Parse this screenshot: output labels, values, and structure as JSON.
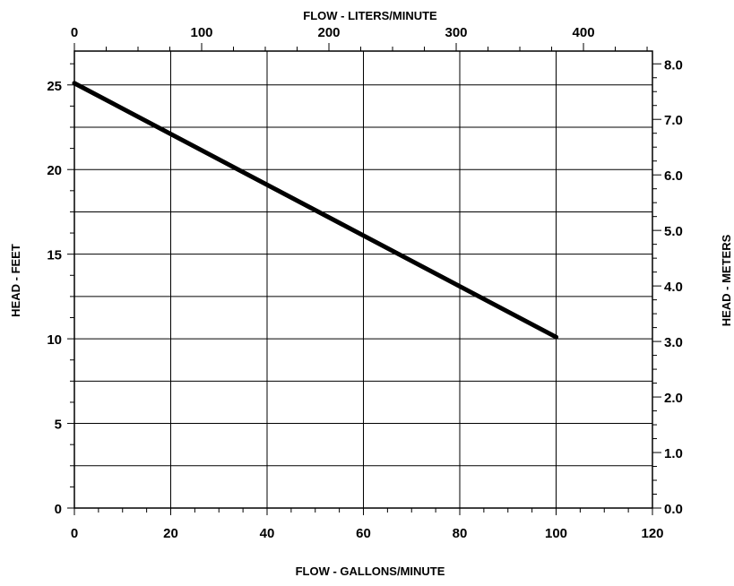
{
  "chart_data": {
    "type": "line",
    "xlabel": "FLOW - GALLONS/MINUTE",
    "ylabel": "HEAD - FEET",
    "x2label": "FLOW - LITERS/MINUTE",
    "y2label": "HEAD - METERS",
    "xlim": [
      0,
      120
    ],
    "ylim": [
      0,
      27
    ],
    "x2lim": [
      0,
      454.2
    ],
    "y2lim": [
      0,
      8.23
    ],
    "x_ticks": [
      "0",
      "20",
      "40",
      "60",
      "80",
      "100",
      "120"
    ],
    "y_ticks": [
      "0",
      "5",
      "10",
      "15",
      "20",
      "25"
    ],
    "x2_ticks": [
      "0",
      "100",
      "200",
      "300",
      "400"
    ],
    "y2_ticks": [
      "0.0",
      "1.0",
      "2.0",
      "3.0",
      "4.0",
      "5.0",
      "6.0",
      "7.0",
      "8.0"
    ],
    "grid": true,
    "series": [
      {
        "x": [
          0,
          100
        ],
        "y": [
          25.1,
          10.1
        ]
      }
    ]
  }
}
